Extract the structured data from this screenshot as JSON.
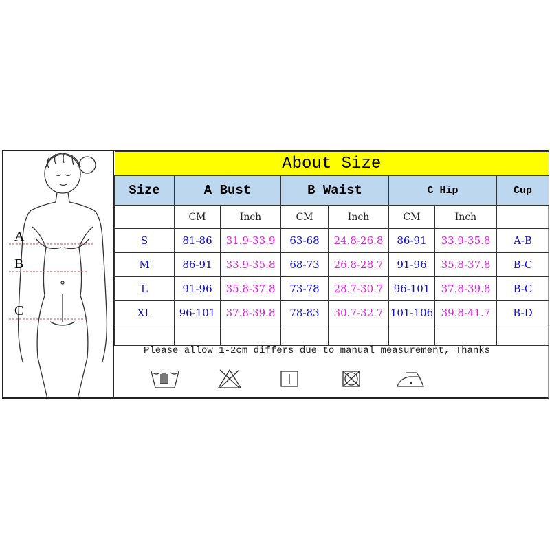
{
  "title": "About Size",
  "headers": {
    "size": "Size",
    "bust": "A Bust",
    "waist": "B Waist",
    "hip": "C Hip",
    "cup": "Cup"
  },
  "units": {
    "cm": "CM",
    "inch": "Inch"
  },
  "rows": [
    {
      "size": "S",
      "bust_cm": "81-86",
      "bust_in": "31.9-33.9",
      "waist_cm": "63-68",
      "waist_in": "24.8-26.8",
      "hip_cm": "86-91",
      "hip_in": "33.9-35.8",
      "cup": "A-B"
    },
    {
      "size": "M",
      "bust_cm": "86-91",
      "bust_in": "33.9-35.8",
      "waist_cm": "68-73",
      "waist_in": "26.8-28.7",
      "hip_cm": "91-96",
      "hip_in": "35.8-37.8",
      "cup": "B-C"
    },
    {
      "size": "L",
      "bust_cm": "91-96",
      "bust_in": "35.8-37.8",
      "waist_cm": "73-78",
      "waist_in": "28.7-30.7",
      "hip_cm": "96-101",
      "hip_in": "37.8-39.8",
      "cup": "B-C"
    },
    {
      "size": "XL",
      "bust_cm": "96-101",
      "bust_in": "37.8-39.8",
      "waist_cm": "78-83",
      "waist_in": "30.7-32.7",
      "hip_cm": "101-106",
      "hip_in": "39.8-41.7",
      "cup": "B-D"
    }
  ],
  "note": "Please allow 1-2cm differs due to manual measurement, Thanks",
  "figure_labels": {
    "a": "A",
    "b": "B",
    "c": "C"
  },
  "care_icons": [
    "hand-wash-icon",
    "do-not-bleach-icon",
    "tumble-dry-line-icon",
    "do-not-tumble-dry-icon",
    "iron-low-icon"
  ],
  "colors": {
    "title_bg": "#ffff00",
    "header_bg": "#bdd7ee",
    "cm_text": "#1010c8",
    "inch_text": "#e020e0"
  }
}
